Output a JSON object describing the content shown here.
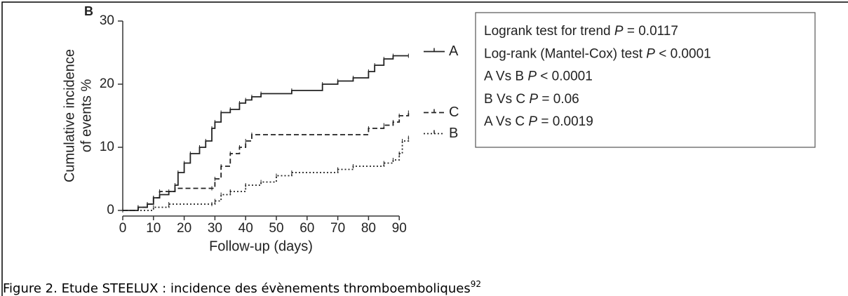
{
  "chart_data": {
    "type": "line",
    "panel_label": "B",
    "ylabel": [
      "Cumulative incidence",
      "of events %"
    ],
    "xlabel": "Follow-up (days)",
    "xlim": [
      0,
      93
    ],
    "ylim": [
      0,
      30
    ],
    "xticks": [
      0,
      10,
      20,
      30,
      40,
      50,
      60,
      70,
      80,
      90
    ],
    "yticks": [
      0,
      10,
      20,
      30
    ],
    "step": true,
    "series": [
      {
        "name": "A",
        "color": "#222222",
        "style": "solid",
        "x": [
          0,
          5,
          8,
          10,
          12,
          15,
          17,
          18,
          20,
          22,
          25,
          27,
          29,
          30,
          32,
          35,
          38,
          40,
          42,
          45,
          55,
          65,
          70,
          75,
          80,
          82,
          85,
          88,
          93
        ],
        "values": [
          0,
          0.5,
          1,
          2,
          2.5,
          3,
          4,
          6,
          7.5,
          9,
          10,
          11,
          13,
          14,
          15.5,
          16,
          17,
          17.5,
          18,
          18.5,
          19,
          20,
          20.5,
          21,
          22,
          23,
          24,
          24.5,
          24.5
        ]
      },
      {
        "name": "C",
        "color": "#222222",
        "style": "dashed",
        "x": [
          0,
          5,
          8,
          10,
          12,
          17,
          29,
          30,
          32,
          35,
          38,
          40,
          42,
          80,
          85,
          88,
          90,
          93
        ],
        "values": [
          0,
          0.5,
          1,
          2,
          3,
          3.5,
          3.5,
          5,
          7,
          9,
          10,
          11,
          12,
          13,
          13.5,
          14,
          15,
          15.5
        ]
      },
      {
        "name": "B",
        "color": "#222222",
        "style": "dotted",
        "x": [
          0,
          10,
          15,
          29,
          30,
          32,
          35,
          40,
          45,
          50,
          55,
          70,
          75,
          85,
          88,
          90,
          91,
          93
        ],
        "values": [
          0,
          0.5,
          1,
          1,
          1.5,
          2.5,
          3,
          4,
          4.5,
          5.5,
          6,
          6.5,
          7,
          7.5,
          8,
          9,
          11,
          11.5
        ]
      }
    ],
    "stats": [
      [
        "Logrank test for trend ",
        "P",
        " = 0.0117"
      ],
      [
        "Log-rank (Mantel-Cox) test ",
        "P",
        " < 0.0001"
      ],
      [
        "A Vs B ",
        "P",
        " < 0.0001"
      ],
      [
        "B Vs C ",
        "P",
        " = 0.06"
      ],
      [
        "A Vs C ",
        "P",
        " = 0.0019"
      ]
    ]
  },
  "caption": {
    "text": "Figure 2. Etude STEELUX : incidence des évènements thromboemboliques",
    "sup": "92"
  }
}
